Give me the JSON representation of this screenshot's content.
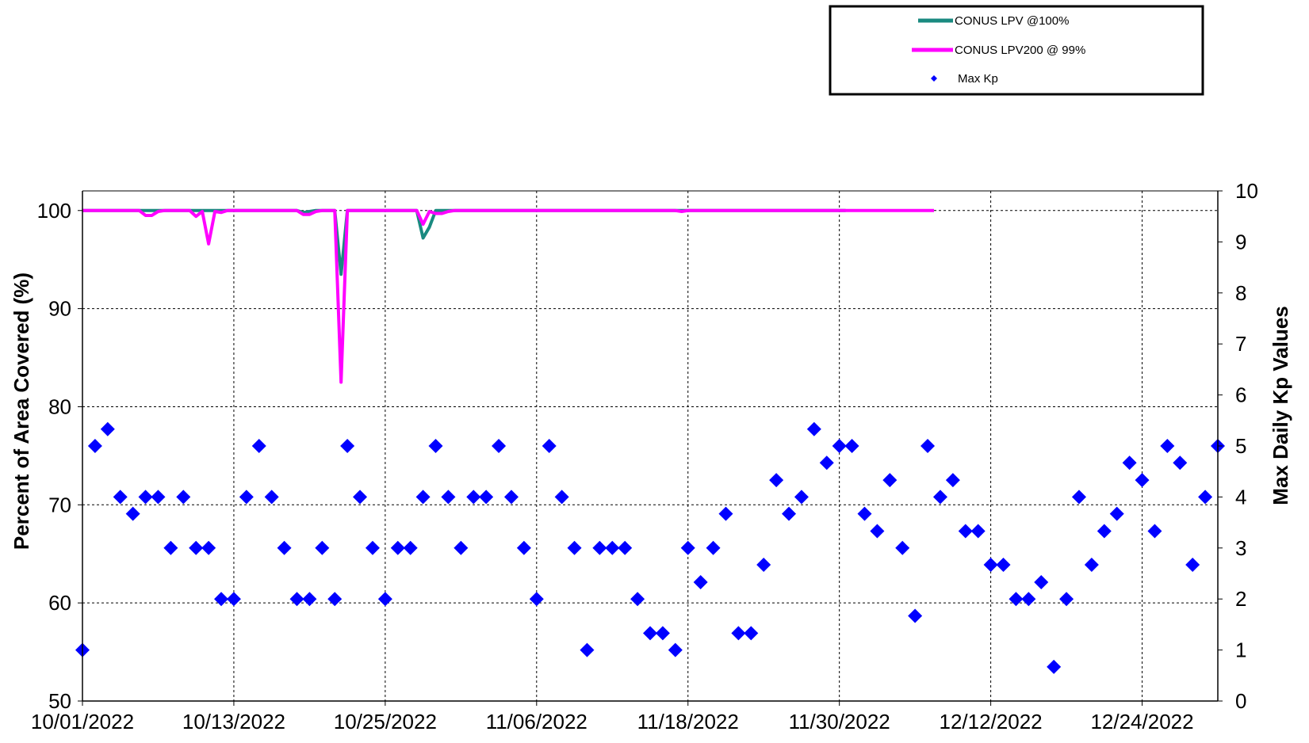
{
  "chart_data": {
    "type": "line",
    "title": "",
    "x_start": "10/01/2022",
    "x_tick_labels": [
      "10/01/2022",
      "10/13/2022",
      "10/25/2022",
      "11/06/2022",
      "11/18/2022",
      "11/30/2022",
      "12/12/2022",
      "12/24/2022"
    ],
    "y_left": {
      "label": "Percent of Area Covered (%)",
      "min": 50,
      "max": 102,
      "ticks": [
        50,
        60,
        70,
        80,
        90,
        100
      ]
    },
    "y_right": {
      "label": "Max Daily Kp Values",
      "min": 0,
      "max": 10,
      "ticks": [
        0,
        1,
        2,
        3,
        4,
        5,
        6,
        7,
        8,
        9,
        10
      ]
    },
    "grid": true,
    "legend_position": "top-right",
    "legend": [
      {
        "label": "CONUS LPV @100%",
        "color": "#1a8a80",
        "marker": "line"
      },
      {
        "label": "CONUS LPV200 @ 99%",
        "color": "#ff00ff",
        "marker": "line"
      },
      {
        "label": "Max Kp",
        "color": "#0000ff",
        "marker": "diamond"
      }
    ],
    "series": [
      {
        "name": "CONUS LPV @100%",
        "axis": "left",
        "color": "#1a8a80",
        "values": [
          100,
          100,
          100,
          100,
          100,
          100,
          100,
          100,
          100,
          100,
          100,
          100,
          100,
          100,
          100,
          100,
          100,
          100,
          100,
          100,
          100,
          100,
          100,
          100,
          100,
          100,
          100,
          100,
          100,
          100,
          100,
          100,
          100,
          100,
          100,
          99.8,
          99.9,
          100,
          100,
          100,
          100,
          93.5,
          100,
          100,
          100,
          100,
          100,
          100,
          100,
          100,
          100,
          100,
          100,
          100,
          97.2,
          98.3,
          100,
          100,
          100,
          100,
          100,
          100,
          100,
          100,
          100,
          100,
          100,
          100,
          100,
          100,
          100,
          100,
          100,
          100,
          100,
          100,
          100,
          100,
          100,
          100,
          100,
          100,
          100,
          100,
          100,
          100,
          100,
          100,
          100,
          100,
          100,
          100,
          100,
          100,
          100,
          100,
          100,
          100,
          100,
          100,
          100,
          100,
          100,
          100,
          100,
          100,
          100,
          100,
          100,
          100,
          100,
          100,
          100,
          100,
          100,
          100,
          100,
          100,
          100,
          100,
          100,
          100
        ]
      },
      {
        "name": "CONUS LPV200 @ 99%",
        "axis": "left",
        "color": "#ff00ff",
        "values": [
          100,
          100,
          100,
          100,
          100,
          100,
          100,
          100,
          100,
          100,
          99.5,
          99.5,
          99.9,
          100,
          100,
          100,
          100,
          100,
          99.4,
          99.9,
          96.6,
          99.9,
          99.8,
          100,
          100,
          100,
          100,
          100,
          100,
          100,
          100,
          100,
          100,
          100,
          100,
          99.6,
          99.6,
          99.9,
          100,
          100,
          100,
          82.5,
          100,
          100,
          100,
          100,
          100,
          100,
          100,
          100,
          100,
          100,
          100,
          100,
          98.6,
          99.9,
          99.7,
          99.7,
          99.9,
          100,
          100,
          100,
          100,
          100,
          100,
          100,
          100,
          100,
          100,
          100,
          100,
          100,
          100,
          100,
          100,
          100,
          100,
          100,
          100,
          100,
          100,
          100,
          100,
          100,
          100,
          100,
          100,
          100,
          100,
          100,
          100,
          100,
          100,
          100,
          100,
          99.9,
          100,
          100,
          100,
          100,
          100,
          100,
          100,
          100,
          100,
          100,
          100,
          100,
          100,
          100,
          100,
          100,
          100,
          100,
          100,
          100,
          100,
          100,
          100,
          100,
          100,
          100,
          100,
          100,
          100,
          100,
          100,
          100,
          100,
          100,
          100,
          100,
          100,
          100,
          100,
          100
        ]
      },
      {
        "name": "Max Kp",
        "axis": "right",
        "color": "#0000ff",
        "values": [
          1,
          5,
          5.33,
          4,
          3.67,
          4,
          4,
          3,
          4,
          3,
          3,
          2,
          2,
          4,
          5,
          4,
          3,
          2,
          2,
          3,
          2,
          5,
          4,
          3,
          2,
          3,
          3,
          4,
          5,
          4,
          3,
          4,
          4,
          5,
          4,
          3,
          2,
          5,
          4,
          3,
          1,
          3,
          3,
          3,
          2,
          1.33,
          1.33,
          1,
          3,
          2.33,
          3,
          3.67,
          1.33,
          1.33,
          2.67,
          4.33,
          3.67,
          4,
          5.33,
          4.67,
          5,
          5,
          3.67,
          3.33,
          4.33,
          3,
          1.67,
          5,
          4,
          4.33,
          3.33,
          3.33,
          2.67,
          2.67,
          2,
          2,
          2.33,
          0.67,
          2,
          4,
          2.67,
          3.33,
          3.67,
          4.67,
          4.33,
          3.33,
          5,
          4.67,
          2.67,
          4,
          5
        ]
      }
    ]
  }
}
